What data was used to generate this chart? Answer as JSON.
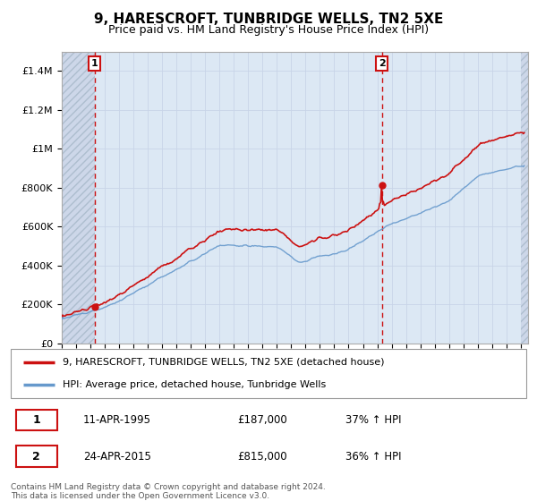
{
  "title": "9, HARESCROFT, TUNBRIDGE WELLS, TN2 5XE",
  "subtitle": "Price paid vs. HM Land Registry's House Price Index (HPI)",
  "ylabel_ticks": [
    "£0",
    "£200K",
    "£400K",
    "£600K",
    "£800K",
    "£1M",
    "£1.2M",
    "£1.4M"
  ],
  "ytick_values": [
    0,
    200000,
    400000,
    600000,
    800000,
    1000000,
    1200000,
    1400000
  ],
  "ylim": [
    0,
    1500000
  ],
  "xlim_start": 1993.0,
  "xlim_end": 2025.5,
  "purchase1_x": 1995.28,
  "purchase1_y": 187000,
  "purchase2_x": 2015.31,
  "purchase2_y": 815000,
  "purchase1_label": "1",
  "purchase2_label": "2",
  "legend_line1": "9, HARESCROFT, TUNBRIDGE WELLS, TN2 5XE (detached house)",
  "legend_line2": "HPI: Average price, detached house, Tunbridge Wells",
  "table_row1_num": "1",
  "table_row1_date": "11-APR-1995",
  "table_row1_price": "£187,000",
  "table_row1_hpi": "37% ↑ HPI",
  "table_row2_num": "2",
  "table_row2_date": "24-APR-2015",
  "table_row2_price": "£815,000",
  "table_row2_hpi": "36% ↑ HPI",
  "footer": "Contains HM Land Registry data © Crown copyright and database right 2024.\nThis data is licensed under the Open Government Licence v3.0.",
  "grid_color": "#c8d4e8",
  "hpi_line_color": "#6699cc",
  "price_line_color": "#cc1111",
  "bg_color": "#dce8f4",
  "hatch_bg": "#ccd6e8"
}
